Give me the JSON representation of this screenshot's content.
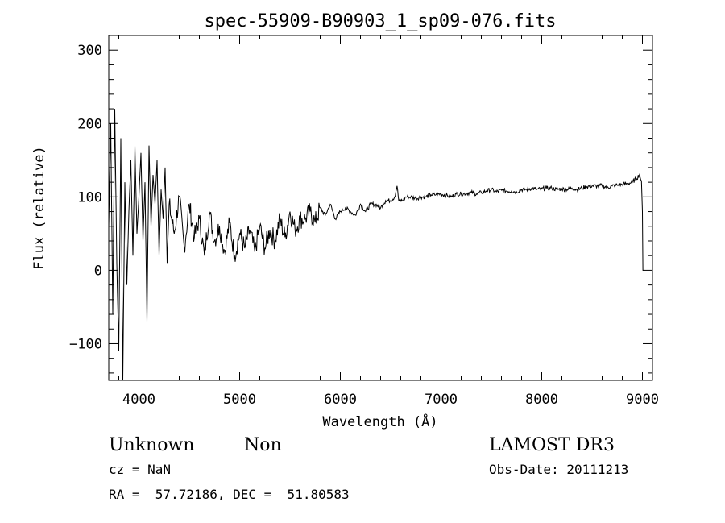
{
  "chart_data": {
    "type": "line",
    "title": "spec-55909-B90903_1_sp09-076.fits",
    "xlabel": "Wavelength (Å)",
    "ylabel": "Flux (relative)",
    "xlim": [
      3700,
      9100
    ],
    "ylim": [
      -150,
      320
    ],
    "x_ticks": [
      4000,
      5000,
      6000,
      7000,
      8000,
      9000
    ],
    "y_ticks": [
      -100,
      0,
      100,
      200,
      300
    ],
    "x_tick_labels": [
      "4000",
      "5000",
      "6000",
      "7000",
      "8000",
      "9000"
    ],
    "y_tick_labels": [
      "−100",
      "0",
      "100",
      "200",
      "300"
    ],
    "grid": false,
    "series": [
      {
        "x": [
          3700,
          3720,
          3740,
          3760,
          3780,
          3800,
          3820,
          3840,
          3860,
          3880,
          3900,
          3920,
          3940,
          3960,
          3980,
          4000,
          4020,
          4040,
          4060,
          4080,
          4100,
          4120,
          4140,
          4160,
          4180,
          4200,
          4220,
          4240,
          4260,
          4280,
          4300,
          4350,
          4400,
          4450,
          4500,
          4550,
          4600,
          4650,
          4700,
          4750,
          4800,
          4850,
          4900,
          4950,
          5000,
          5050,
          5100,
          5150,
          5200,
          5250,
          5300,
          5350,
          5400,
          5450,
          5500,
          5550,
          5600,
          5650,
          5700,
          5750,
          5800,
          5850,
          5900,
          5950,
          6000,
          6050,
          6100,
          6150,
          6200,
          6250,
          6300,
          6350,
          6400,
          6450,
          6500,
          6540,
          6563,
          6580,
          6620,
          6650,
          6700,
          6750,
          6800,
          6850,
          6900,
          6950,
          7000,
          7050,
          7100,
          7150,
          7200,
          7250,
          7300,
          7350,
          7400,
          7450,
          7500,
          7550,
          7600,
          7650,
          7700,
          7750,
          7800,
          7850,
          7900,
          7950,
          8000,
          8050,
          8100,
          8150,
          8200,
          8250,
          8300,
          8350,
          8400,
          8450,
          8500,
          8550,
          8600,
          8650,
          8700,
          8750,
          8800,
          8850,
          8900,
          8940,
          8970,
          8990,
          9000,
          9005,
          9010
        ],
        "y": [
          60,
          200,
          -60,
          220,
          10,
          -110,
          180,
          -150,
          120,
          -20,
          80,
          150,
          20,
          170,
          50,
          100,
          160,
          40,
          120,
          -70,
          170,
          60,
          130,
          90,
          150,
          20,
          110,
          70,
          140,
          10,
          90,
          50,
          100,
          30,
          90,
          45,
          70,
          20,
          80,
          40,
          60,
          25,
          65,
          20,
          50,
          30,
          55,
          25,
          60,
          30,
          55,
          40,
          70,
          45,
          80,
          55,
          70,
          70,
          80,
          65,
          85,
          75,
          90,
          70,
          80,
          85,
          80,
          75,
          90,
          80,
          90,
          90,
          85,
          95,
          95,
          100,
          115,
          95,
          95,
          100,
          100,
          98,
          100,
          100,
          103,
          103,
          104,
          102,
          100,
          104,
          104,
          105,
          106,
          104,
          106,
          108,
          110,
          107,
          109,
          108,
          108,
          107,
          110,
          110,
          112,
          110,
          111,
          112,
          112,
          110,
          111,
          110,
          112,
          110,
          112,
          114,
          115,
          115,
          115,
          113,
          115,
          116,
          117,
          118,
          120,
          125,
          130,
          122,
          80,
          0,
          0
        ]
      }
    ],
    "annotations": {
      "class_type": "Unknown",
      "subclass": "Non",
      "survey": "LAMOST DR3",
      "cz": "cz = NaN",
      "obs_date": "Obs-Date: 20111213",
      "coords": "RA =  57.72186, DEC =  51.80583"
    }
  }
}
